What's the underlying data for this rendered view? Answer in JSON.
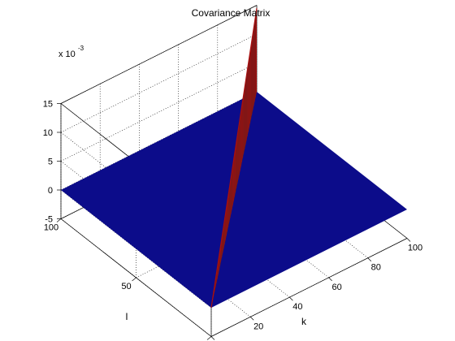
{
  "chart_data": {
    "type": "surface",
    "title": "Covariance Matrix",
    "xlabel": "k",
    "ylabel": "l",
    "zlabel": "",
    "z_multiplier_label": "x 10",
    "z_multiplier_exponent": "-3",
    "x_ticks": [
      "0",
      "20",
      "40",
      "60",
      "80",
      "100"
    ],
    "y_ticks": [
      "0",
      "50",
      "100"
    ],
    "z_ticks": [
      "-5",
      "0",
      "5",
      "10",
      "15"
    ],
    "xlim": [
      0,
      100
    ],
    "ylim": [
      0,
      100
    ],
    "zlim": [
      -5,
      15
    ],
    "grid": true,
    "surface_description_values": {
      "off_diagonal_value": 0,
      "diagonal_value_at_k0_l0": 0,
      "diagonal_value_at_k100_l100": 14.5
    },
    "colors": {
      "flat_surface": "#0c0c8a",
      "diagonal_ridge": "#a80f0f",
      "ridge_edge": "#2a2a2a"
    }
  }
}
